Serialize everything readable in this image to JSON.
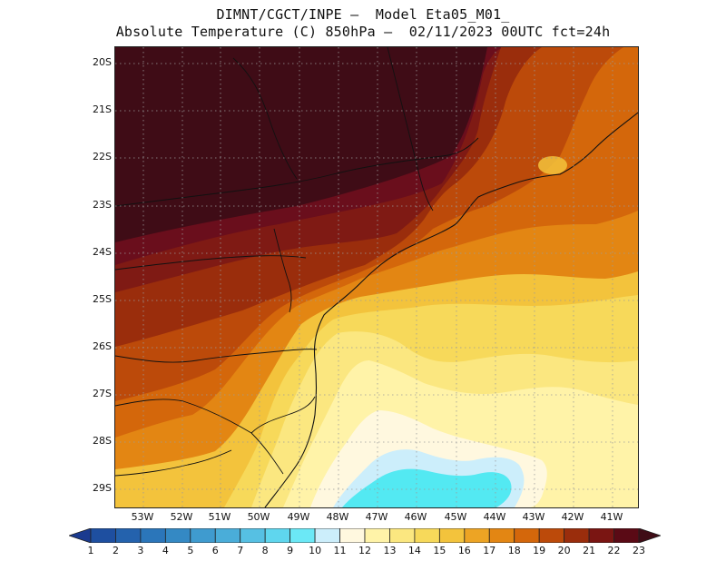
{
  "title_line1": "DIMNT/CGCT/INPE —  Model Eta05_M01_",
  "title_line2": "Absolute Temperature (C) 850hPa —  02/11/2023 00UTC fct=24h",
  "lat_labels": [
    "20S",
    "21S",
    "22S",
    "23S",
    "24S",
    "25S",
    "26S",
    "27S",
    "28S",
    "29S"
  ],
  "lon_labels": [
    "53W",
    "52W",
    "51W",
    "50W",
    "49W",
    "48W",
    "47W",
    "46W",
    "45W",
    "44W",
    "43W",
    "42W",
    "41W"
  ],
  "colorbar": {
    "labels": [
      "1",
      "2",
      "3",
      "4",
      "5",
      "6",
      "7",
      "8",
      "9",
      "10",
      "11",
      "12",
      "13",
      "14",
      "15",
      "16",
      "17",
      "18",
      "19",
      "20",
      "21",
      "22",
      "23"
    ],
    "colors": [
      "#1a3a8f",
      "#1e4fa0",
      "#2462ad",
      "#2b76ba",
      "#3489c4",
      "#3f9bcf",
      "#4aadd9",
      "#56c0e3",
      "#5fd6ee",
      "#6be8f6",
      "#cceefb",
      "#fff8df",
      "#fff3a8",
      "#fbe780",
      "#f7d95a",
      "#f3c33c",
      "#eda424",
      "#e38613",
      "#d4670b",
      "#bc4a0a",
      "#9a2d0c",
      "#7a1512",
      "#5a0a15",
      "#3f0c16"
    ]
  },
  "colors": {
    "water_cold": "#53e9f2",
    "deep": "#3f0c16",
    "hot": "#5a0a15"
  }
}
